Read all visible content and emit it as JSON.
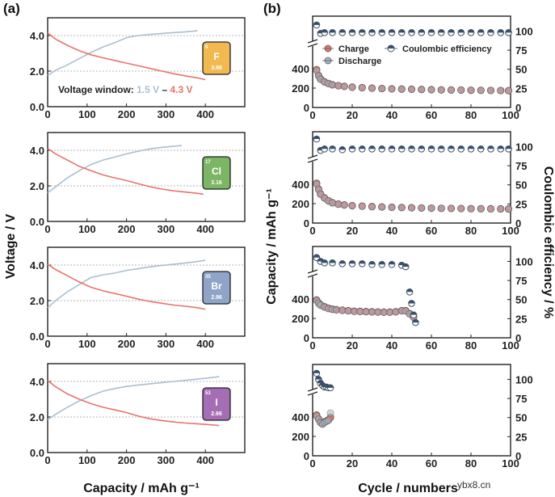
{
  "figure": {
    "panel_a_label": "(a)",
    "panel_b_label": "(b)",
    "watermark": "ybx8.cn"
  },
  "colors": {
    "charge_line": "#e8736c",
    "discharge_line": "#a9bfd1",
    "charge_marker": "#e8736c",
    "discharge_marker": "#9fb7c6",
    "ce_marker": "#3a5068",
    "grid": "#b5b5b5"
  },
  "chart_data": [
    {
      "type": "line",
      "panel": "a-1",
      "element": {
        "symbol": "F",
        "number": "9",
        "value": "3.98",
        "color": "#f1b950"
      },
      "annotation": {
        "prefix": "Voltage window: ",
        "low": "1.5 V",
        "dash": " – ",
        "high": "4.3 V"
      },
      "xlim": [
        0,
        500
      ],
      "ylim": [
        0,
        5
      ],
      "xticks": [
        "0",
        "100",
        "200",
        "300",
        "400"
      ],
      "yticks": [
        "0.0",
        "2.0",
        "4.0"
      ],
      "series": [
        {
          "name": "charge",
          "x": [
            0,
            20,
            50,
            80,
            110,
            140,
            170,
            200,
            230,
            260,
            290,
            320,
            350,
            380
          ],
          "y": [
            1.75,
            2.05,
            2.35,
            2.7,
            3.05,
            3.35,
            3.6,
            3.88,
            4.0,
            4.07,
            4.12,
            4.17,
            4.21,
            4.27
          ]
        },
        {
          "name": "discharge",
          "x": [
            0,
            20,
            50,
            80,
            110,
            140,
            170,
            200,
            230,
            260,
            290,
            320,
            350,
            380,
            400
          ],
          "y": [
            4.15,
            3.8,
            3.45,
            3.15,
            2.92,
            2.75,
            2.6,
            2.45,
            2.3,
            2.15,
            2.0,
            1.85,
            1.73,
            1.62,
            1.52
          ]
        }
      ]
    },
    {
      "type": "line",
      "panel": "a-2",
      "element": {
        "symbol": "Cl",
        "number": "17",
        "value": "3.16",
        "color": "#7cb563"
      },
      "xlim": [
        0,
        500
      ],
      "ylim": [
        0,
        5
      ],
      "xticks": [
        "0",
        "100",
        "200",
        "300",
        "400"
      ],
      "yticks": [
        "0.0",
        "2.0",
        "4.0"
      ],
      "series": [
        {
          "name": "charge",
          "x": [
            0,
            20,
            50,
            80,
            110,
            140,
            170,
            200,
            230,
            260,
            290,
            320,
            340
          ],
          "y": [
            1.6,
            1.95,
            2.45,
            2.85,
            3.2,
            3.45,
            3.62,
            3.8,
            3.95,
            4.08,
            4.17,
            4.23,
            4.27
          ]
        },
        {
          "name": "discharge",
          "x": [
            0,
            20,
            50,
            80,
            110,
            140,
            170,
            200,
            230,
            260,
            290,
            320,
            350,
            380,
            395
          ],
          "y": [
            4.1,
            3.8,
            3.45,
            3.1,
            2.85,
            2.62,
            2.45,
            2.3,
            2.12,
            1.95,
            1.82,
            1.72,
            1.65,
            1.58,
            1.53
          ]
        }
      ]
    },
    {
      "type": "line",
      "panel": "a-3",
      "element": {
        "symbol": "Br",
        "number": "35",
        "value": "2.96",
        "color": "#8fa4c8"
      },
      "xlim": [
        0,
        500
      ],
      "ylim": [
        0,
        5
      ],
      "xticks": [
        "0",
        "100",
        "200",
        "300",
        "400"
      ],
      "yticks": [
        "0.0",
        "2.0",
        "4.0"
      ],
      "series": [
        {
          "name": "charge",
          "x": [
            0,
            20,
            50,
            80,
            110,
            140,
            170,
            200,
            230,
            260,
            290,
            320,
            350,
            380,
            400
          ],
          "y": [
            1.6,
            2.0,
            2.5,
            2.9,
            3.3,
            3.45,
            3.55,
            3.7,
            3.8,
            3.9,
            3.98,
            4.05,
            4.12,
            4.2,
            4.27
          ]
        },
        {
          "name": "discharge",
          "x": [
            0,
            20,
            50,
            80,
            110,
            140,
            170,
            200,
            230,
            260,
            290,
            320,
            350,
            380,
            400
          ],
          "y": [
            4.05,
            3.75,
            3.4,
            3.05,
            2.75,
            2.55,
            2.4,
            2.25,
            2.08,
            1.95,
            1.85,
            1.75,
            1.68,
            1.6,
            1.52
          ]
        }
      ]
    },
    {
      "type": "line",
      "panel": "a-4",
      "element": {
        "symbol": "I",
        "number": "53",
        "value": "2.66",
        "color": "#a56eb4"
      },
      "xlim": [
        0,
        500
      ],
      "ylim": [
        0,
        5
      ],
      "xticks": [
        "0",
        "100",
        "200",
        "300",
        "400"
      ],
      "yticks": [
        "0.0",
        "2.0",
        "4.0"
      ],
      "xlabel": "Capacity / mAh g⁻¹",
      "series": [
        {
          "name": "charge",
          "x": [
            0,
            20,
            50,
            80,
            110,
            140,
            170,
            200,
            230,
            260,
            290,
            320,
            350,
            380,
            410,
            435
          ],
          "y": [
            1.85,
            2.15,
            2.55,
            2.9,
            3.2,
            3.45,
            3.6,
            3.72,
            3.8,
            3.87,
            3.93,
            4.0,
            4.07,
            4.13,
            4.2,
            4.27
          ]
        },
        {
          "name": "discharge",
          "x": [
            0,
            20,
            50,
            80,
            110,
            140,
            170,
            200,
            230,
            260,
            290,
            320,
            350,
            380,
            410,
            435
          ],
          "y": [
            4.05,
            3.7,
            3.3,
            3.0,
            2.75,
            2.55,
            2.4,
            2.25,
            2.05,
            1.9,
            1.8,
            1.72,
            1.66,
            1.62,
            1.57,
            1.52
          ]
        }
      ]
    },
    {
      "type": "scatter",
      "panel": "b-1",
      "xlim": [
        0,
        100
      ],
      "xticks": [
        "0",
        "20",
        "40",
        "60",
        "80",
        "100"
      ],
      "cap_ticks": [
        "0",
        "200",
        "400"
      ],
      "ce_ticks": [
        "0",
        "25",
        "50",
        "75",
        "100"
      ],
      "legend": {
        "charge": "Charge",
        "discharge": "Discharge",
        "ce": "Coulombic efficiency"
      },
      "series": [
        {
          "name": "Charge",
          "x": [
            2,
            3,
            4,
            6,
            8,
            10,
            13,
            16,
            20,
            25,
            30,
            35,
            40,
            45,
            50,
            55,
            60,
            65,
            70,
            75,
            80,
            85,
            90,
            95,
            99
          ],
          "y": [
            390,
            330,
            295,
            265,
            248,
            235,
            225,
            218,
            210,
            205,
            200,
            195,
            192,
            190,
            188,
            186,
            184,
            182,
            181,
            180,
            178,
            177,
            176,
            175,
            174
          ]
        },
        {
          "name": "Discharge",
          "x": [
            2,
            3,
            4,
            6,
            8,
            10,
            13,
            16,
            20,
            25,
            30,
            35,
            40,
            45,
            50,
            55,
            60,
            65,
            70,
            75,
            80,
            85,
            90,
            95,
            99
          ],
          "y": [
            380,
            325,
            290,
            262,
            246,
            233,
            223,
            216,
            208,
            203,
            198,
            194,
            191,
            189,
            187,
            185,
            183,
            181,
            180,
            179,
            177,
            176,
            175,
            174,
            173
          ]
        },
        {
          "name": "Coulombic efficiency",
          "x": [
            2,
            4,
            6,
            10,
            15,
            20,
            25,
            30,
            35,
            40,
            45,
            50,
            55,
            60,
            65,
            70,
            75,
            80,
            85,
            90,
            95,
            99
          ],
          "y": [
            108,
            97,
            98,
            98,
            98,
            98,
            98,
            98,
            98,
            98,
            98,
            98,
            98,
            98,
            98,
            98,
            98,
            98,
            98,
            98,
            98,
            98
          ]
        }
      ]
    },
    {
      "type": "scatter",
      "panel": "b-2",
      "xlim": [
        0,
        100
      ],
      "xticks": [
        "0",
        "20",
        "40",
        "60",
        "80",
        "100"
      ],
      "cap_ticks": [
        "0",
        "200",
        "400"
      ],
      "ce_ticks": [
        "0",
        "25",
        "50",
        "75",
        "100"
      ],
      "ylabel_left": "Capacity / mAh g⁻¹",
      "ylabel_right": "Coulombic efficiency / %",
      "series": [
        {
          "name": "Charge",
          "x": [
            2,
            3,
            4,
            6,
            8,
            10,
            13,
            16,
            20,
            25,
            30,
            35,
            40,
            45,
            50,
            55,
            60,
            65,
            70,
            75,
            80,
            85,
            90,
            95,
            99
          ],
          "y": [
            410,
            350,
            300,
            260,
            230,
            210,
            195,
            187,
            180,
            175,
            170,
            166,
            163,
            160,
            158,
            156,
            154,
            152,
            151,
            150,
            149,
            148,
            147,
            146,
            145
          ]
        },
        {
          "name": "Discharge",
          "x": [
            2,
            3,
            4,
            6,
            8,
            10,
            13,
            16,
            20,
            25,
            30,
            35,
            40,
            45,
            50,
            55,
            60,
            65,
            70,
            75,
            80,
            85,
            90,
            95,
            99
          ],
          "y": [
            400,
            345,
            295,
            256,
            227,
            208,
            193,
            185,
            178,
            173,
            168,
            165,
            162,
            159,
            157,
            155,
            153,
            151,
            150,
            149,
            148,
            147,
            146,
            145,
            144
          ]
        },
        {
          "name": "Coulombic efficiency",
          "x": [
            2,
            4,
            6,
            10,
            15,
            20,
            25,
            30,
            35,
            40,
            45,
            50,
            55,
            60,
            65,
            70,
            75,
            80,
            85,
            90,
            95,
            99
          ],
          "y": [
            110,
            95,
            97,
            97,
            96,
            97,
            97,
            97,
            97,
            97,
            97,
            97,
            97,
            97,
            97,
            97,
            97,
            97,
            97,
            97,
            97,
            97
          ]
        }
      ]
    },
    {
      "type": "scatter",
      "panel": "b-3",
      "xlim": [
        0,
        100
      ],
      "xticks": [
        "0",
        "20",
        "40",
        "60",
        "80",
        "100"
      ],
      "cap_ticks": [
        "0",
        "200",
        "400"
      ],
      "ce_ticks": [
        "0",
        "25",
        "50",
        "75",
        "100"
      ],
      "series": [
        {
          "name": "Charge",
          "x": [
            2,
            3,
            4,
            6,
            8,
            10,
            12,
            15,
            18,
            21,
            24,
            27,
            30,
            33,
            36,
            39,
            42,
            45,
            47,
            49,
            51
          ],
          "y": [
            390,
            360,
            340,
            320,
            305,
            295,
            290,
            285,
            280,
            275,
            272,
            270,
            268,
            266,
            265,
            265,
            268,
            280,
            280,
            250,
            215
          ]
        },
        {
          "name": "Discharge",
          "x": [
            2,
            3,
            4,
            6,
            8,
            10,
            12,
            15,
            18,
            21,
            24,
            27,
            30,
            33,
            36,
            39,
            42,
            45,
            47,
            49,
            51
          ],
          "y": [
            385,
            355,
            335,
            315,
            300,
            292,
            287,
            282,
            277,
            272,
            270,
            268,
            266,
            264,
            263,
            263,
            266,
            278,
            276,
            245,
            210
          ]
        },
        {
          "name": "Coulombic efficiency",
          "x": [
            2,
            4,
            6,
            10,
            15,
            20,
            25,
            30,
            35,
            40,
            45,
            47,
            49,
            50,
            51,
            52
          ],
          "y": [
            105,
            100,
            98,
            98,
            97,
            97,
            97,
            96,
            96,
            96,
            95,
            93,
            60,
            45,
            30,
            20
          ]
        }
      ]
    },
    {
      "type": "scatter",
      "panel": "b-4",
      "xlim": [
        0,
        100
      ],
      "xticks": [
        "0",
        "20",
        "40",
        "60",
        "80",
        "100"
      ],
      "cap_ticks": [
        "0",
        "200",
        "400"
      ],
      "ce_ticks": [
        "0",
        "25",
        "50",
        "75",
        "100"
      ],
      "xlabel": "Cycle / numbers",
      "series": [
        {
          "name": "Charge",
          "x": [
            2,
            3,
            4,
            5,
            6,
            7,
            8,
            9
          ],
          "y": [
            420,
            380,
            345,
            330,
            350,
            360,
            370,
            395
          ]
        },
        {
          "name": "Discharge",
          "x": [
            2,
            3,
            4,
            5,
            6,
            7,
            8,
            9
          ],
          "y": [
            410,
            375,
            340,
            325,
            345,
            355,
            365,
            440
          ]
        },
        {
          "name": "Coulombic efficiency",
          "x": [
            2,
            3,
            4,
            5,
            6,
            7,
            8,
            9
          ],
          "y": [
            108,
            100,
            95,
            92,
            90,
            90,
            89,
            89
          ]
        }
      ]
    }
  ]
}
